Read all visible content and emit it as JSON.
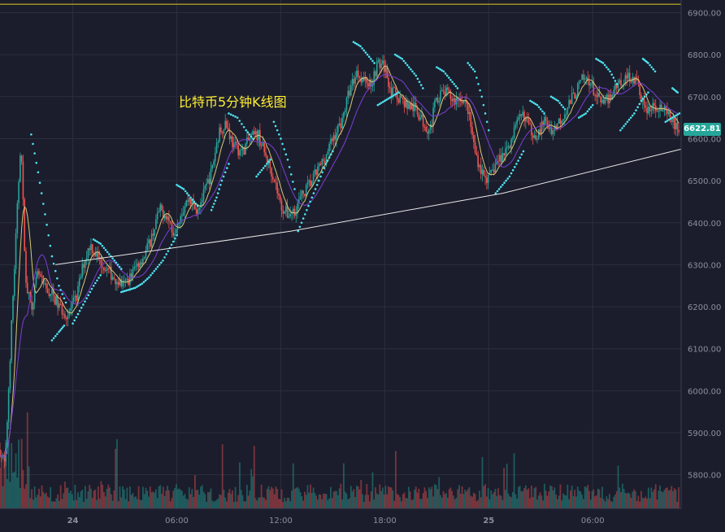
{
  "chart_data": {
    "type": "candlestick",
    "title": "比特币5分钟K线图",
    "ylim": [
      5720,
      6930
    ],
    "y_ticks": [
      "6900.00",
      "6800.00",
      "6700.00",
      "6600.00",
      "6500.00",
      "6400.00",
      "6300.00",
      "6200.00",
      "6100.00",
      "6000.00",
      "5900.00",
      "5800.00"
    ],
    "y_tick_values": [
      6900,
      6800,
      6700,
      6600,
      6500,
      6400,
      6300,
      6200,
      6100,
      6000,
      5900,
      5800
    ],
    "x_ticks": [
      "24",
      "06:00",
      "12:00",
      "18:00",
      "25",
      "06:00"
    ],
    "x_tick_hours": [
      0,
      6,
      12,
      18,
      24,
      30
    ],
    "x_range_hours": [
      -4.2,
      35.1
    ],
    "last_price": "6622.81",
    "price_series": [
      [
        -4.2,
        5860
      ],
      [
        -3.9,
        5820
      ],
      [
        -3.6,
        6100
      ],
      [
        -3.3,
        6350
      ],
      [
        -3.0,
        6600
      ],
      [
        -2.7,
        6250
      ],
      [
        -2.4,
        6200
      ],
      [
        -2.0,
        6280
      ],
      [
        -1.6,
        6240
      ],
      [
        -1.2,
        6230
      ],
      [
        -0.8,
        6200
      ],
      [
        -0.3,
        6180
      ],
      [
        0.2,
        6220
      ],
      [
        0.6,
        6300
      ],
      [
        1.0,
        6350
      ],
      [
        1.4,
        6320
      ],
      [
        1.9,
        6290
      ],
      [
        2.4,
        6270
      ],
      [
        2.9,
        6250
      ],
      [
        3.3,
        6270
      ],
      [
        3.7,
        6300
      ],
      [
        4.1,
        6320
      ],
      [
        4.5,
        6360
      ],
      [
        5.0,
        6430
      ],
      [
        5.4,
        6420
      ],
      [
        5.8,
        6380
      ],
      [
        6.2,
        6420
      ],
      [
        6.7,
        6460
      ],
      [
        7.1,
        6430
      ],
      [
        7.5,
        6460
      ],
      [
        8.0,
        6520
      ],
      [
        8.4,
        6610
      ],
      [
        8.8,
        6640
      ],
      [
        9.3,
        6580
      ],
      [
        9.8,
        6570
      ],
      [
        10.2,
        6600
      ],
      [
        10.7,
        6610
      ],
      [
        11.1,
        6560
      ],
      [
        11.6,
        6510
      ],
      [
        12.0,
        6440
      ],
      [
        12.4,
        6420
      ],
      [
        12.8,
        6430
      ],
      [
        13.3,
        6470
      ],
      [
        13.8,
        6500
      ],
      [
        14.2,
        6530
      ],
      [
        14.6,
        6560
      ],
      [
        15.0,
        6600
      ],
      [
        15.5,
        6640
      ],
      [
        16.0,
        6720
      ],
      [
        16.4,
        6760
      ],
      [
        16.8,
        6740
      ],
      [
        17.2,
        6730
      ],
      [
        17.6,
        6780
      ],
      [
        18.0,
        6770
      ],
      [
        18.4,
        6710
      ],
      [
        18.8,
        6700
      ],
      [
        19.3,
        6680
      ],
      [
        19.8,
        6670
      ],
      [
        20.2,
        6640
      ],
      [
        20.6,
        6620
      ],
      [
        21.0,
        6700
      ],
      [
        21.5,
        6710
      ],
      [
        22.0,
        6690
      ],
      [
        22.4,
        6700
      ],
      [
        22.8,
        6670
      ],
      [
        23.2,
        6570
      ],
      [
        23.6,
        6520
      ],
      [
        24.0,
        6500
      ],
      [
        24.4,
        6540
      ],
      [
        24.8,
        6560
      ],
      [
        25.2,
        6590
      ],
      [
        25.6,
        6630
      ],
      [
        26.0,
        6660
      ],
      [
        26.4,
        6620
      ],
      [
        26.8,
        6610
      ],
      [
        27.2,
        6640
      ],
      [
        27.7,
        6620
      ],
      [
        28.2,
        6650
      ],
      [
        28.6,
        6680
      ],
      [
        29.0,
        6710
      ],
      [
        29.4,
        6740
      ],
      [
        29.8,
        6740
      ],
      [
        30.2,
        6700
      ],
      [
        30.6,
        6680
      ],
      [
        31.0,
        6700
      ],
      [
        31.4,
        6730
      ],
      [
        31.8,
        6740
      ],
      [
        32.2,
        6750
      ],
      [
        32.6,
        6730
      ],
      [
        33.0,
        6670
      ],
      [
        33.4,
        6670
      ],
      [
        33.8,
        6680
      ],
      [
        34.2,
        6660
      ],
      [
        34.6,
        6640
      ],
      [
        35.0,
        6620
      ]
    ],
    "volume_scale": [
      0,
      1
    ],
    "support_line": [
      [
        -1.0,
        6300
      ],
      [
        12.6,
        6380
      ],
      [
        24.8,
        6470
      ],
      [
        35.1,
        6575
      ]
    ],
    "resistance_line": 6920,
    "sar_segments": [
      [
        [
          -2.4,
          6610
        ],
        [
          -2.0,
          6520
        ],
        [
          -1.6,
          6420
        ],
        [
          -1.2,
          6320
        ],
        [
          -0.8,
          6250
        ],
        [
          -0.4,
          6210
        ]
      ],
      [
        [
          -1.2,
          6120
        ],
        [
          -0.8,
          6140
        ],
        [
          -0.5,
          6155
        ]
      ],
      [
        [
          0.0,
          6160
        ],
        [
          0.4,
          6190
        ],
        [
          0.8,
          6220
        ],
        [
          1.2,
          6250
        ],
        [
          1.6,
          6275
        ]
      ],
      [
        [
          1.2,
          6360
        ],
        [
          1.6,
          6350
        ],
        [
          2.0,
          6330
        ],
        [
          2.4,
          6310
        ],
        [
          2.8,
          6290
        ]
      ],
      [
        [
          2.8,
          6235
        ],
        [
          3.2,
          6240
        ],
        [
          3.6,
          6245
        ],
        [
          4.0,
          6255
        ],
        [
          4.4,
          6270
        ],
        [
          4.8,
          6290
        ],
        [
          5.2,
          6310
        ],
        [
          5.6,
          6340
        ],
        [
          6.0,
          6370
        ]
      ],
      [
        [
          6.0,
          6490
        ],
        [
          6.4,
          6480
        ],
        [
          6.8,
          6460
        ],
        [
          7.2,
          6440
        ]
      ],
      [
        [
          8.0,
          6430
        ],
        [
          8.3,
          6460
        ],
        [
          8.6,
          6500
        ],
        [
          9.0,
          6540
        ]
      ],
      [
        [
          9.0,
          6660
        ],
        [
          9.5,
          6650
        ],
        [
          10.0,
          6620
        ],
        [
          10.4,
          6600
        ]
      ],
      [
        [
          10.6,
          6510
        ],
        [
          11.0,
          6530
        ],
        [
          11.4,
          6550
        ]
      ],
      [
        [
          11.6,
          6640
        ],
        [
          12.0,
          6600
        ],
        [
          12.4,
          6550
        ],
        [
          12.8,
          6480
        ]
      ],
      [
        [
          13.0,
          6380
        ],
        [
          13.4,
          6420
        ],
        [
          13.8,
          6460
        ],
        [
          14.2,
          6500
        ],
        [
          14.6,
          6540
        ],
        [
          15.0,
          6570
        ]
      ],
      [
        [
          16.2,
          6830
        ],
        [
          16.6,
          6820
        ],
        [
          17.0,
          6800
        ],
        [
          17.4,
          6780
        ]
      ],
      [
        [
          17.6,
          6680
        ],
        [
          18.0,
          6690
        ],
        [
          18.4,
          6700
        ],
        [
          18.8,
          6710
        ]
      ],
      [
        [
          18.6,
          6800
        ],
        [
          19.0,
          6790
        ],
        [
          19.4,
          6770
        ],
        [
          19.8,
          6750
        ],
        [
          20.2,
          6720
        ]
      ],
      [
        [
          21.0,
          6770
        ],
        [
          21.4,
          6760
        ],
        [
          21.8,
          6740
        ],
        [
          22.2,
          6720
        ]
      ],
      [
        [
          22.8,
          6780
        ],
        [
          23.2,
          6760
        ],
        [
          23.6,
          6700
        ],
        [
          24.0,
          6620
        ]
      ],
      [
        [
          24.4,
          6470
        ],
        [
          24.8,
          6490
        ],
        [
          25.2,
          6510
        ],
        [
          25.6,
          6540
        ],
        [
          26.0,
          6570
        ]
      ],
      [
        [
          26.4,
          6690
        ],
        [
          26.8,
          6680
        ],
        [
          27.2,
          6660
        ]
      ],
      [
        [
          27.6,
          6700
        ],
        [
          28.0,
          6690
        ],
        [
          28.4,
          6670
        ]
      ],
      [
        [
          29.2,
          6650
        ],
        [
          29.6,
          6660
        ],
        [
          30.0,
          6680
        ]
      ],
      [
        [
          30.2,
          6790
        ],
        [
          30.6,
          6780
        ],
        [
          31.0,
          6760
        ],
        [
          31.4,
          6730
        ]
      ],
      [
        [
          31.6,
          6620
        ],
        [
          32.0,
          6640
        ],
        [
          32.4,
          6660
        ],
        [
          32.8,
          6690
        ],
        [
          33.2,
          6710
        ]
      ],
      [
        [
          32.9,
          6790
        ],
        [
          33.2,
          6780
        ],
        [
          33.6,
          6760
        ]
      ],
      [
        [
          34.2,
          6640
        ],
        [
          34.6,
          6650
        ],
        [
          35.0,
          6660
        ]
      ],
      [
        [
          34.6,
          6720
        ],
        [
          34.9,
          6710
        ]
      ]
    ]
  }
}
